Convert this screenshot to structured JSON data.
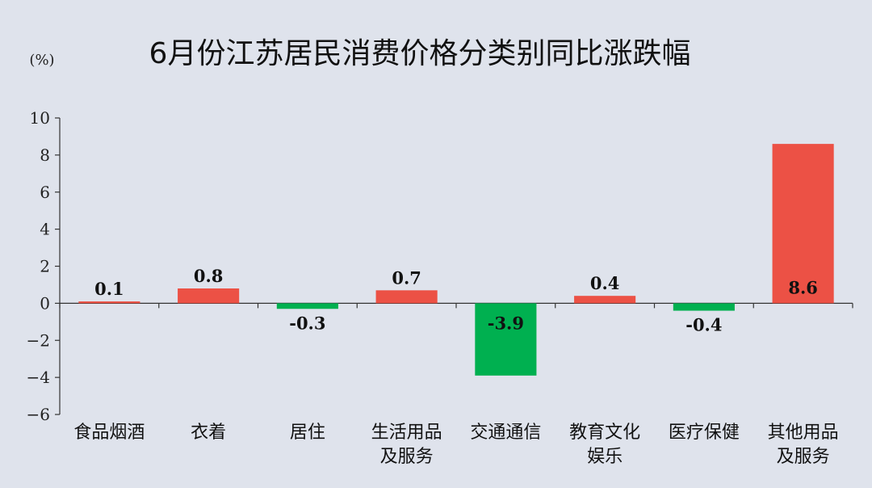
{
  "chart_data": {
    "type": "bar",
    "title": "6月份江苏居民消费价格分类别同比涨跌幅",
    "unit_label": "(%)",
    "categories": [
      [
        "食品烟酒"
      ],
      [
        "衣着"
      ],
      [
        "居住"
      ],
      [
        "生活用品",
        "及服务"
      ],
      [
        "交通通信"
      ],
      [
        "教育文化",
        "娱乐"
      ],
      [
        "医疗保健"
      ],
      [
        "其他用品",
        "及服务"
      ]
    ],
    "values": [
      0.1,
      0.8,
      -0.3,
      0.7,
      -3.9,
      0.4,
      -0.4,
      8.6
    ],
    "value_labels": [
      "0.1",
      "0.8",
      "-0.3",
      "0.7",
      "-3.9",
      "0.4",
      "-0.4",
      "8.6"
    ],
    "ylim": [
      -6,
      10
    ],
    "yticks": [
      10,
      8,
      6,
      4,
      2,
      0,
      -2,
      -4,
      -6
    ],
    "ytick_labels": [
      "10",
      "8",
      "6",
      "4",
      "2",
      "0",
      "−2",
      "−4",
      "−6"
    ],
    "grid": false,
    "colors": {
      "positive": "#ec5145",
      "negative": "#00b050",
      "axis": "#333333",
      "background": "#dfe3ec"
    }
  }
}
